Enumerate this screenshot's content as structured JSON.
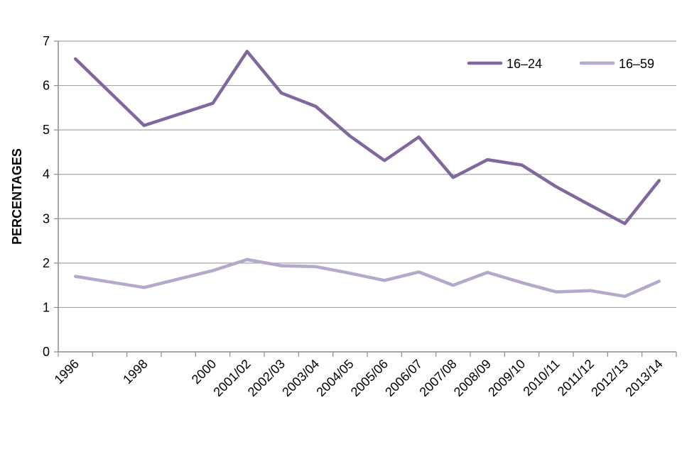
{
  "chart_data": {
    "type": "line",
    "title": "",
    "xlabel": "",
    "ylabel": "PERCENTAGES",
    "ylim": [
      0,
      7
    ],
    "yticks": [
      "0",
      "1",
      "2",
      "3",
      "4",
      "5",
      "6",
      "7"
    ],
    "grid": true,
    "legend_position": "top-right",
    "categories": [
      "1996",
      "",
      "1998",
      "",
      "2000",
      "2001/02",
      "2002/03",
      "2003/04",
      "2004/05",
      "2005/06",
      "2006/07",
      "2007/08",
      "2008/09",
      "2009/10",
      "2010/11",
      "2011/12",
      "2012/13",
      "2013/14"
    ],
    "series": [
      {
        "name": "16–24",
        "color": "#80689e",
        "values": [
          6.6,
          null,
          5.1,
          null,
          5.6,
          6.77,
          5.83,
          5.53,
          4.86,
          4.31,
          4.84,
          3.93,
          4.33,
          4.21,
          3.72,
          3.3,
          2.89,
          3.86
        ]
      },
      {
        "name": "16–59",
        "color": "#b5a8c9",
        "values": [
          1.7,
          null,
          1.45,
          null,
          1.83,
          2.08,
          1.94,
          1.92,
          1.77,
          1.61,
          1.8,
          1.5,
          1.79,
          1.56,
          1.35,
          1.38,
          1.25,
          1.59
        ]
      }
    ]
  }
}
